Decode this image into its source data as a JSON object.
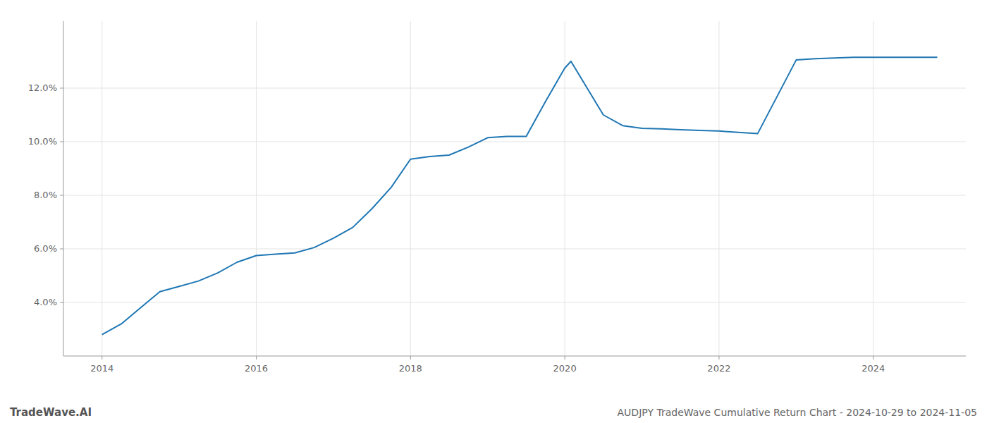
{
  "chart_data": {
    "type": "line",
    "title": "AUDJPY TradeWave Cumulative Return Chart - 2024-10-29 to 2024-11-05",
    "annotations": [
      "TradeWave.AI"
    ],
    "color": "#1f77b4",
    "x": [
      2014.0,
      2014.25,
      2014.5,
      2014.75,
      2015.0,
      2015.25,
      2015.5,
      2015.75,
      2016.0,
      2016.25,
      2016.5,
      2016.75,
      2017.0,
      2017.25,
      2017.5,
      2017.75,
      2018.0,
      2018.25,
      2018.5,
      2018.75,
      2019.0,
      2019.25,
      2019.5,
      2019.75,
      2020.0,
      2020.08,
      2020.5,
      2020.75,
      2021.0,
      2021.25,
      2021.5,
      2021.75,
      2022.0,
      2022.08,
      2022.25,
      2022.5,
      2023.0,
      2023.25,
      2023.75,
      2024.0,
      2024.83
    ],
    "values": [
      2.8,
      3.2,
      3.8,
      4.4,
      4.6,
      4.8,
      5.1,
      5.5,
      5.75,
      5.8,
      5.85,
      6.05,
      6.4,
      6.8,
      7.5,
      8.3,
      9.35,
      9.45,
      9.5,
      9.8,
      10.15,
      10.2,
      10.2,
      11.5,
      12.75,
      13.0,
      11.0,
      10.6,
      10.5,
      10.48,
      10.45,
      10.42,
      10.4,
      10.38,
      10.35,
      10.3,
      13.05,
      13.1,
      13.15,
      13.15,
      13.15
    ],
    "xlim": [
      2013.5,
      2025.2
    ],
    "ylim": [
      2.0,
      14.5
    ],
    "xticks": [
      2014,
      2016,
      2018,
      2020,
      2022,
      2024
    ],
    "yticks": [
      {
        "value": 4.0,
        "label": "4.0%"
      },
      {
        "value": 6.0,
        "label": "6.0%"
      },
      {
        "value": 8.0,
        "label": "8.0%"
      },
      {
        "value": 10.0,
        "label": "10.0%"
      },
      {
        "value": 12.0,
        "label": "12.0%"
      }
    ],
    "grid": true
  }
}
